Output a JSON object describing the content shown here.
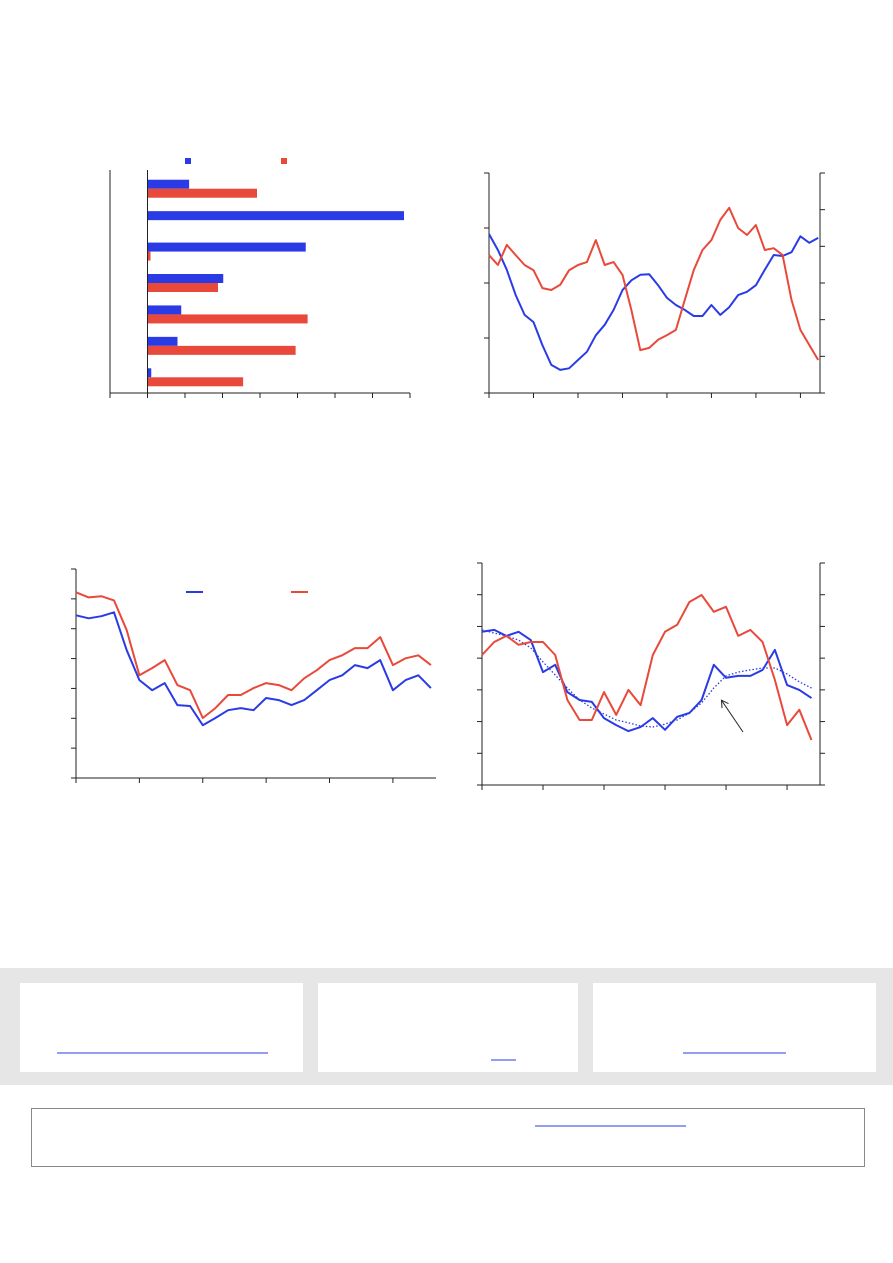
{
  "chart_data": [
    {
      "type": "bar",
      "orientation": "horizontal",
      "legend": "top",
      "categories": [
        null,
        null,
        null,
        null,
        null,
        null,
        null
      ],
      "series": [
        {
          "color": "#2a3be6",
          "values": [
            1.11,
            6.84,
            4.22,
            2.02,
            0.9,
            0.8,
            0.1
          ]
        },
        {
          "color": "#e8493a",
          "values": [
            2.92,
            0,
            0.08,
            1.88,
            4.27,
            3.95,
            2.55
          ]
        }
      ],
      "xlim": [
        -1,
        7
      ],
      "xticks": [
        -1,
        0,
        1,
        2,
        3,
        4,
        5,
        6,
        7
      ]
    },
    {
      "type": "line",
      "x": [
        0,
        2,
        4,
        6,
        8,
        10,
        12,
        14,
        16,
        18,
        20,
        22,
        24,
        26,
        28,
        30,
        32,
        34,
        36,
        38,
        40,
        42,
        44,
        46,
        48,
        50,
        52,
        54,
        56,
        58,
        60,
        62,
        64,
        66,
        68,
        70,
        72,
        74
      ],
      "series": [
        {
          "color": "#2a3be6",
          "values": [
            2.89,
            2.6,
            2.24,
            1.78,
            1.42,
            1.29,
            0.87,
            0.51,
            0.42,
            0.45,
            0.6,
            0.75,
            1.05,
            1.24,
            1.51,
            1.87,
            2.05,
            2.15,
            2.16,
            1.96,
            1.73,
            1.6,
            1.51,
            1.4,
            1.4,
            1.6,
            1.42,
            1.56,
            1.78,
            1.84,
            1.96,
            2.24,
            2.51,
            2.49,
            2.56,
            2.85,
            2.73,
            2.82
          ]
        },
        {
          "color": "#e8493a",
          "axis": "y2",
          "values": [
            3.76,
            3.49,
            4.04,
            3.76,
            3.49,
            3.35,
            2.86,
            2.81,
            2.95,
            3.35,
            3.49,
            3.57,
            4.17,
            3.49,
            3.57,
            3.22,
            2.26,
            1.17,
            1.23,
            1.45,
            1.58,
            1.72,
            2.54,
            3.35,
            3.9,
            4.17,
            4.72,
            5.05,
            4.5,
            4.31,
            4.58,
            3.9,
            3.95,
            3.76,
            2.54,
            1.72,
            1.31,
            0.9
          ]
        }
      ],
      "xlim": [
        0,
        74.4
      ],
      "xticks": [
        0,
        10,
        20,
        30,
        40,
        50,
        60,
        70
      ],
      "ylim": [
        0,
        4
      ],
      "yticks": [
        0,
        1,
        2,
        3,
        4
      ],
      "y2lim": [
        0,
        6
      ],
      "y2ticks": [
        0,
        1,
        2,
        3,
        4,
        5,
        6
      ]
    },
    {
      "type": "line",
      "legend": "top",
      "x": [
        0,
        2,
        4,
        6,
        8,
        10,
        12,
        14,
        16,
        18,
        20,
        22,
        24,
        26,
        28,
        30,
        32,
        34,
        36,
        38,
        40,
        42,
        44,
        46,
        48,
        50,
        52,
        54,
        56
      ],
      "series": [
        {
          "color": "#2a3be6",
          "values": [
            5.45,
            5.35,
            5.42,
            5.55,
            4.28,
            3.28,
            2.94,
            3.18,
            2.44,
            2.41,
            1.77,
            2.01,
            2.27,
            2.34,
            2.27,
            2.68,
            2.61,
            2.44,
            2.61,
            2.94,
            3.28,
            3.44,
            3.78,
            3.68,
            3.95,
            2.94,
            3.28,
            3.44,
            3.01
          ]
        },
        {
          "color": "#e8493a",
          "values": [
            6.22,
            6.05,
            6.09,
            5.95,
            4.95,
            3.44,
            3.68,
            3.95,
            3.11,
            2.94,
            2.01,
            2.34,
            2.78,
            2.78,
            3.01,
            3.18,
            3.11,
            2.94,
            3.34,
            3.61,
            3.95,
            4.11,
            4.35,
            4.35,
            4.72,
            3.78,
            4.01,
            4.11,
            3.78
          ]
        }
      ],
      "xlim": [
        0,
        56.8
      ],
      "xticks": [
        0,
        10,
        20,
        30,
        40,
        50
      ],
      "ylim": [
        0,
        7
      ],
      "yticks": [
        0,
        1,
        2,
        3,
        4,
        5,
        6,
        7
      ]
    },
    {
      "type": "line",
      "x": [
        0,
        2,
        4,
        6,
        8,
        10,
        12,
        14,
        16,
        18,
        20,
        22,
        24,
        26,
        28,
        30,
        32,
        34,
        36,
        38,
        40,
        42,
        44,
        46,
        48,
        50,
        52,
        54
      ],
      "series": [
        {
          "color": "#2a3be6",
          "values": [
            4.83,
            4.89,
            4.7,
            4.83,
            4.57,
            3.56,
            3.79,
            2.93,
            2.68,
            2.62,
            2.11,
            1.89,
            1.7,
            1.83,
            2.11,
            1.74,
            2.15,
            2.27,
            2.68,
            3.79,
            3.38,
            3.44,
            3.44,
            3.63,
            4.26,
            3.15,
            3.0,
            2.74
          ]
        },
        {
          "color": "#2a3be6",
          "style": "dotted",
          "values": [
            4.89,
            4.79,
            4.7,
            4.57,
            4.32,
            3.88,
            3.47,
            3.06,
            2.68,
            2.43,
            2.24,
            2.05,
            1.96,
            1.86,
            1.83,
            1.92,
            2.05,
            2.27,
            2.59,
            3.06,
            3.44,
            3.56,
            3.63,
            3.69,
            3.69,
            3.5,
            3.25,
            3.06
          ]
        },
        {
          "color": "#e8493a",
          "axis": "y2",
          "values": [
            4.1,
            4.51,
            4.7,
            4.42,
            4.51,
            4.51,
            4.1,
            2.68,
            2.05,
            2.05,
            2.93,
            2.21,
            3.0,
            2.52,
            4.1,
            4.83,
            5.05,
            5.77,
            5.99,
            5.46,
            5.62,
            4.7,
            4.89,
            4.51,
            3.31,
            1.89,
            2.37,
            1.42
          ]
        }
      ],
      "xlim": [
        0,
        55.4
      ],
      "xticks": [
        0,
        10,
        20,
        30,
        40,
        50
      ],
      "ylim": [
        0,
        7
      ],
      "yticks": [
        0,
        1,
        2,
        3,
        4,
        5,
        6,
        7
      ],
      "y2lim": [
        0,
        7
      ],
      "y2ticks": [
        0,
        1,
        2,
        3,
        4,
        5,
        6,
        7
      ]
    }
  ]
}
